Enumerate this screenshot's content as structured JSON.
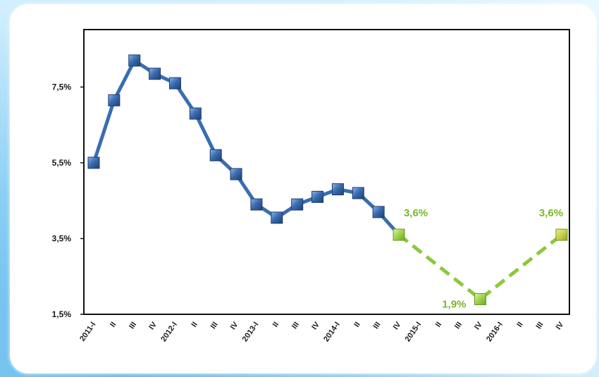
{
  "chart_data": {
    "type": "line",
    "categories": [
      "2011-I",
      "II",
      "III",
      "IV",
      "2012-I",
      "II",
      "III",
      "IV",
      "2013-I",
      "II",
      "III",
      "IV",
      "2014-I",
      "II",
      "III",
      "IV",
      "2015-I",
      "II",
      "III",
      "IV",
      "2016-I",
      "II",
      "III",
      "IV"
    ],
    "y_ticks": [
      "1,5%",
      "3,5%",
      "5,5%",
      "7,5%"
    ],
    "ylim": [
      1.5,
      8.2
    ],
    "grid": false,
    "series": [
      {
        "color": "#3a6db1",
        "style": "solid",
        "points": [
          {
            "x": 0,
            "y": 5.5
          },
          {
            "x": 1,
            "y": 7.15
          },
          {
            "x": 2,
            "y": 8.2
          },
          {
            "x": 3,
            "y": 7.85
          },
          {
            "x": 4,
            "y": 7.6
          },
          {
            "x": 5,
            "y": 6.8
          },
          {
            "x": 6,
            "y": 5.7
          },
          {
            "x": 7,
            "y": 5.2
          },
          {
            "x": 8,
            "y": 4.4
          },
          {
            "x": 9,
            "y": 4.05
          },
          {
            "x": 10,
            "y": 4.4
          },
          {
            "x": 11,
            "y": 4.6
          },
          {
            "x": 12,
            "y": 4.8
          },
          {
            "x": 13,
            "y": 4.7
          },
          {
            "x": 14,
            "y": 4.2
          },
          {
            "x": 15,
            "y": 3.6
          }
        ]
      },
      {
        "color": "#8cc83c",
        "style": "dashed",
        "points": [
          {
            "x": 15,
            "y": 3.6,
            "label": "3,6%"
          },
          {
            "x": 19,
            "y": 1.9,
            "label": "1,9%"
          },
          {
            "x": 23,
            "y": 3.6,
            "label": "3,6%"
          }
        ]
      }
    ]
  }
}
